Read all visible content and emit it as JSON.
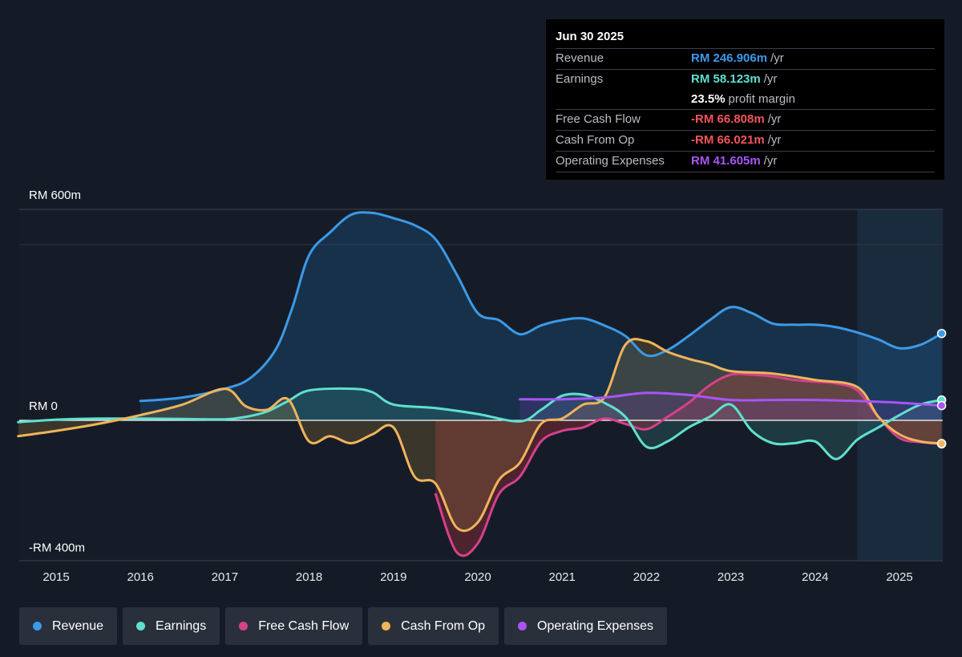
{
  "tooltip": {
    "date": "Jun 30 2025",
    "rows": [
      {
        "label": "Revenue",
        "value": "RM 246.906m",
        "unit": "/yr",
        "color": "#3b9ae8"
      },
      {
        "label": "Earnings",
        "value": "RM 58.123m",
        "unit": "/yr",
        "color": "#5fe0cf"
      },
      {
        "label": "",
        "value": "23.5%",
        "unit": "profit margin",
        "color": "#ffffff"
      },
      {
        "label": "Free Cash Flow",
        "value": "-RM 66.808m",
        "unit": "/yr",
        "color": "#f2545b"
      },
      {
        "label": "Cash From Op",
        "value": "-RM 66.021m",
        "unit": "/yr",
        "color": "#f2545b"
      },
      {
        "label": "Operating Expenses",
        "value": "RM 41.605m",
        "unit": "/yr",
        "color": "#a855f7"
      }
    ]
  },
  "legend": [
    {
      "label": "Revenue",
      "color": "#3b9ae8"
    },
    {
      "label": "Earnings",
      "color": "#5fe0cf"
    },
    {
      "label": "Free Cash Flow",
      "color": "#d6418a"
    },
    {
      "label": "Cash From Op",
      "color": "#f0b45a"
    },
    {
      "label": "Operating Expenses",
      "color": "#a855f7"
    }
  ],
  "chart_data": {
    "type": "line",
    "y_unit": "RM m",
    "ylim": [
      -400,
      600
    ],
    "y_tick_labels": [
      {
        "value": 600,
        "label": "RM 600m"
      },
      {
        "value": 0,
        "label": "RM 0"
      },
      {
        "value": -400,
        "label": "-RM 400m"
      }
    ],
    "x_range": [
      2014.55,
      2025.5
    ],
    "x_tick_labels": [
      "2015",
      "2016",
      "2017",
      "2018",
      "2019",
      "2020",
      "2021",
      "2022",
      "2023",
      "2024",
      "2025"
    ],
    "highlight_start": 2024.5,
    "series": [
      {
        "name": "Revenue",
        "color": "#3b9ae8",
        "fill": true,
        "points": [
          [
            2016.0,
            55
          ],
          [
            2016.5,
            65
          ],
          [
            2017.0,
            90
          ],
          [
            2017.3,
            120
          ],
          [
            2017.6,
            200
          ],
          [
            2017.8,
            320
          ],
          [
            2018.0,
            470
          ],
          [
            2018.25,
            535
          ],
          [
            2018.5,
            585
          ],
          [
            2018.75,
            590
          ],
          [
            2019.0,
            575
          ],
          [
            2019.25,
            555
          ],
          [
            2019.5,
            515
          ],
          [
            2019.75,
            415
          ],
          [
            2020.0,
            305
          ],
          [
            2020.25,
            285
          ],
          [
            2020.5,
            245
          ],
          [
            2020.75,
            270
          ],
          [
            2021.0,
            285
          ],
          [
            2021.25,
            290
          ],
          [
            2021.5,
            270
          ],
          [
            2021.75,
            240
          ],
          [
            2022.0,
            185
          ],
          [
            2022.25,
            200
          ],
          [
            2022.5,
            240
          ],
          [
            2022.75,
            285
          ],
          [
            2023.0,
            322
          ],
          [
            2023.25,
            305
          ],
          [
            2023.5,
            275
          ],
          [
            2023.75,
            272
          ],
          [
            2024.0,
            272
          ],
          [
            2024.25,
            265
          ],
          [
            2024.5,
            250
          ],
          [
            2024.75,
            230
          ],
          [
            2025.0,
            205
          ],
          [
            2025.25,
            215
          ],
          [
            2025.5,
            247
          ]
        ]
      },
      {
        "name": "Earnings",
        "color": "#5fe0cf",
        "fill": true,
        "points": [
          [
            2014.55,
            -5
          ],
          [
            2015.0,
            2
          ],
          [
            2015.5,
            5
          ],
          [
            2016.0,
            5
          ],
          [
            2016.5,
            4
          ],
          [
            2017.0,
            3
          ],
          [
            2017.25,
            10
          ],
          [
            2017.5,
            25
          ],
          [
            2017.75,
            55
          ],
          [
            2018.0,
            85
          ],
          [
            2018.5,
            90
          ],
          [
            2018.75,
            80
          ],
          [
            2019.0,
            45
          ],
          [
            2019.5,
            35
          ],
          [
            2020.0,
            18
          ],
          [
            2020.5,
            -3
          ],
          [
            2020.75,
            30
          ],
          [
            2021.0,
            70
          ],
          [
            2021.25,
            73
          ],
          [
            2021.5,
            50
          ],
          [
            2021.75,
            10
          ],
          [
            2022.0,
            -75
          ],
          [
            2022.25,
            -60
          ],
          [
            2022.5,
            -20
          ],
          [
            2022.75,
            10
          ],
          [
            2023.0,
            45
          ],
          [
            2023.25,
            -30
          ],
          [
            2023.5,
            -65
          ],
          [
            2023.75,
            -65
          ],
          [
            2024.0,
            -60
          ],
          [
            2024.25,
            -110
          ],
          [
            2024.5,
            -55
          ],
          [
            2024.75,
            -20
          ],
          [
            2025.0,
            15
          ],
          [
            2025.25,
            45
          ],
          [
            2025.5,
            58
          ]
        ]
      },
      {
        "name": "Free Cash Flow",
        "color": "#d6418a",
        "fill": true,
        "points": [
          [
            2019.5,
            -210
          ],
          [
            2019.75,
            -375
          ],
          [
            2020.0,
            -350
          ],
          [
            2020.25,
            -210
          ],
          [
            2020.5,
            -160
          ],
          [
            2020.75,
            -60
          ],
          [
            2021.0,
            -30
          ],
          [
            2021.25,
            -20
          ],
          [
            2021.5,
            5
          ],
          [
            2021.75,
            -10
          ],
          [
            2022.0,
            -25
          ],
          [
            2022.25,
            10
          ],
          [
            2022.5,
            50
          ],
          [
            2022.75,
            100
          ],
          [
            2023.0,
            130
          ],
          [
            2023.25,
            130
          ],
          [
            2023.5,
            125
          ],
          [
            2023.75,
            115
          ],
          [
            2024.0,
            110
          ],
          [
            2024.25,
            105
          ],
          [
            2024.5,
            85
          ],
          [
            2024.75,
            10
          ],
          [
            2025.0,
            -50
          ],
          [
            2025.25,
            -62
          ],
          [
            2025.5,
            -67
          ]
        ]
      },
      {
        "name": "Cash From Op",
        "color": "#f0b45a",
        "fill": true,
        "points": [
          [
            2014.55,
            -45
          ],
          [
            2015.0,
            -30
          ],
          [
            2015.5,
            -10
          ],
          [
            2016.0,
            15
          ],
          [
            2016.5,
            45
          ],
          [
            2017.0,
            90
          ],
          [
            2017.25,
            40
          ],
          [
            2017.5,
            30
          ],
          [
            2017.75,
            60
          ],
          [
            2018.0,
            -60
          ],
          [
            2018.25,
            -45
          ],
          [
            2018.5,
            -65
          ],
          [
            2018.75,
            -40
          ],
          [
            2019.0,
            -20
          ],
          [
            2019.25,
            -160
          ],
          [
            2019.5,
            -180
          ],
          [
            2019.75,
            -305
          ],
          [
            2020.0,
            -290
          ],
          [
            2020.25,
            -170
          ],
          [
            2020.5,
            -120
          ],
          [
            2020.75,
            -10
          ],
          [
            2021.0,
            5
          ],
          [
            2021.25,
            45
          ],
          [
            2021.5,
            65
          ],
          [
            2021.75,
            215
          ],
          [
            2022.0,
            225
          ],
          [
            2022.25,
            195
          ],
          [
            2022.5,
            175
          ],
          [
            2022.75,
            160
          ],
          [
            2023.0,
            140
          ],
          [
            2023.5,
            133
          ],
          [
            2024.0,
            115
          ],
          [
            2024.5,
            95
          ],
          [
            2024.75,
            10
          ],
          [
            2025.0,
            -40
          ],
          [
            2025.25,
            -60
          ],
          [
            2025.5,
            -66
          ]
        ]
      },
      {
        "name": "Operating Expenses",
        "color": "#a855f7",
        "fill": true,
        "points": [
          [
            2020.5,
            60
          ],
          [
            2021.0,
            60
          ],
          [
            2021.5,
            65
          ],
          [
            2022.0,
            78
          ],
          [
            2022.5,
            72
          ],
          [
            2023.0,
            58
          ],
          [
            2023.5,
            58
          ],
          [
            2024.0,
            58
          ],
          [
            2024.5,
            55
          ],
          [
            2025.0,
            50
          ],
          [
            2025.5,
            42
          ]
        ]
      }
    ]
  }
}
